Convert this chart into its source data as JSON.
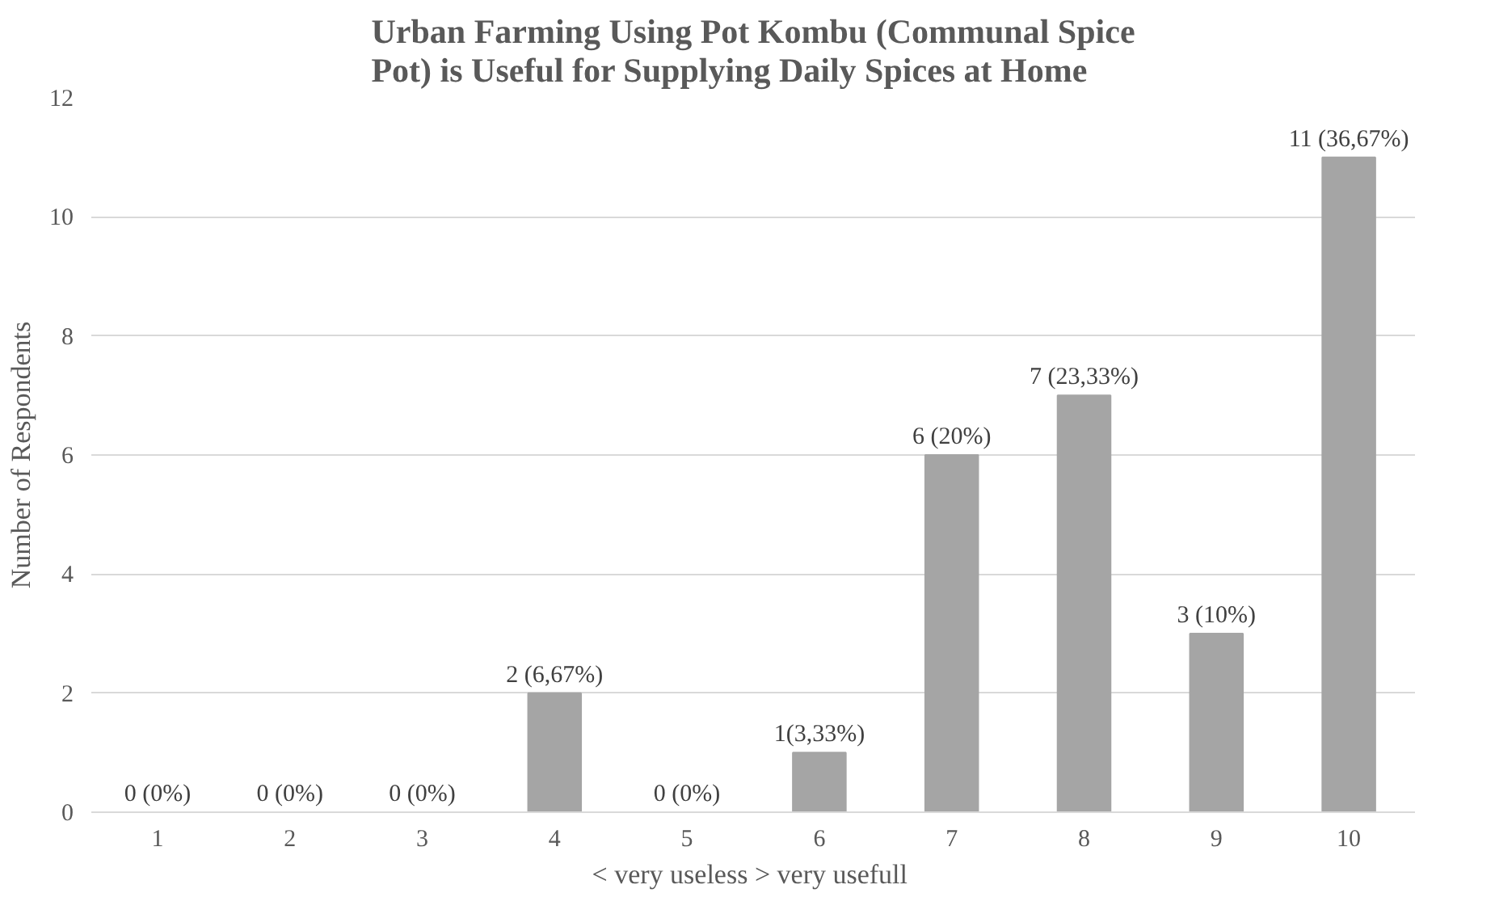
{
  "chart_data": {
    "type": "bar",
    "title": "Urban Farming Using Pot Kombu (Communal Spice\nPot) is Useful for Supplying Daily Spices at Home",
    "xlabel": "< very useless >  very usefull",
    "ylabel": "Number of Respondents",
    "categories": [
      "1",
      "2",
      "3",
      "4",
      "5",
      "6",
      "7",
      "8",
      "9",
      "10"
    ],
    "values": [
      0,
      0,
      0,
      2,
      0,
      1,
      6,
      7,
      3,
      11
    ],
    "value_labels": [
      "0 (0%)",
      "0 (0%)",
      "0 (0%)",
      "2 (6,67%)",
      "0 (0%)",
      "1(3,33%)",
      "6 (20%)",
      "7 (23,33%)",
      "3 (10%)",
      "11 (36,67%)"
    ],
    "color": "#a5a5a5",
    "ylim": [
      0,
      12
    ],
    "yticks": [
      0,
      2,
      4,
      6,
      8,
      10,
      12
    ],
    "grid": "y"
  }
}
